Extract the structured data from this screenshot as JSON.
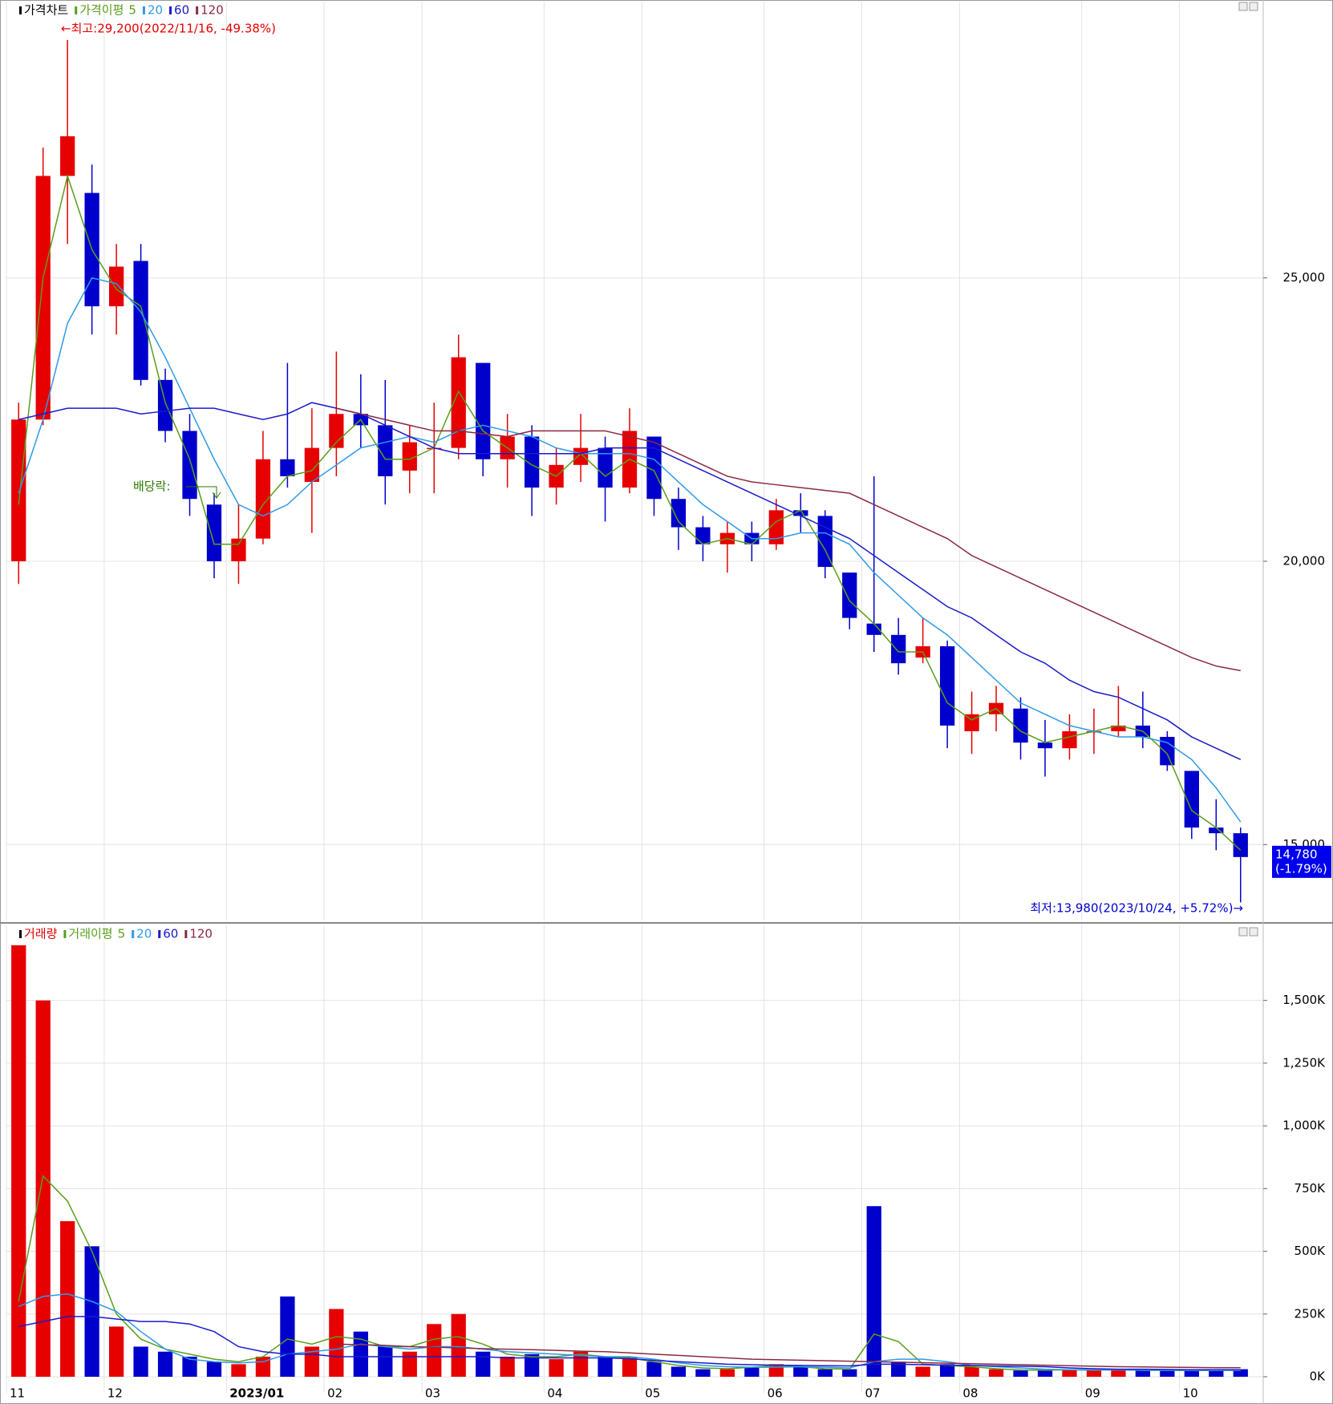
{
  "chart_data": [
    {
      "type": "candlestick",
      "title": "가격차트",
      "legend_title": "가격이평",
      "up_color": "#e60000",
      "down_color": "#0000cc",
      "open": [
        20000,
        22500,
        26800,
        26500,
        24500,
        25300,
        23200,
        22300,
        21000,
        20000,
        20400,
        21800,
        21400,
        22000,
        22600,
        22400,
        21600,
        22000,
        22000,
        23500,
        21800,
        22200,
        21300,
        21700,
        22000,
        21300,
        22200,
        21100,
        20600,
        20300,
        20500,
        20300,
        20900,
        20800,
        19800,
        18900,
        18700,
        18300,
        18500,
        17000,
        17300,
        17400,
        16800,
        16700,
        17000,
        17000,
        17100,
        16900,
        16300,
        15300,
        15200
      ],
      "high": [
        22800,
        27300,
        29200,
        27000,
        25600,
        25600,
        23400,
        22600,
        21200,
        21000,
        22300,
        23500,
        22700,
        23700,
        23300,
        23200,
        22400,
        22800,
        24000,
        23500,
        22600,
        22400,
        22000,
        22600,
        22200,
        22700,
        22200,
        21300,
        20800,
        20700,
        20700,
        21100,
        21200,
        20900,
        19800,
        21500,
        19000,
        19000,
        18600,
        17700,
        17800,
        17600,
        17200,
        17300,
        17400,
        17800,
        17700,
        17000,
        16300,
        15800,
        15300
      ],
      "low": [
        19600,
        22400,
        25600,
        24000,
        24000,
        23100,
        22100,
        20800,
        19700,
        19600,
        20300,
        21300,
        20500,
        21500,
        22000,
        21000,
        21200,
        21200,
        21800,
        21500,
        21300,
        20800,
        21000,
        21400,
        20700,
        21200,
        20800,
        20200,
        20000,
        19800,
        20000,
        20200,
        20500,
        19700,
        18800,
        18400,
        18000,
        18200,
        16700,
        16600,
        17000,
        16500,
        16200,
        16500,
        16600,
        16900,
        16700,
        16300,
        15100,
        14900,
        13980
      ],
      "close": [
        22500,
        26800,
        27500,
        24500,
        25200,
        23200,
        22300,
        21100,
        20000,
        20400,
        21800,
        21500,
        22000,
        22600,
        22400,
        21500,
        22100,
        22000,
        23600,
        21800,
        22200,
        21300,
        21700,
        22000,
        21300,
        22300,
        21100,
        20600,
        20300,
        20500,
        20300,
        20900,
        20800,
        19900,
        19000,
        18700,
        18200,
        18500,
        17100,
        17300,
        17500,
        16800,
        16700,
        17000,
        17000,
        17100,
        16900,
        16400,
        15300,
        15200,
        14780
      ],
      "series": [
        {
          "name": "5",
          "color": "#5a9e1c",
          "values": [
            21000,
            25000,
            26800,
            25500,
            24800,
            24500,
            22800,
            21800,
            20300,
            20300,
            21000,
            21500,
            21600,
            22100,
            22500,
            21800,
            21800,
            22000,
            23000,
            22300,
            22000,
            21700,
            21500,
            21900,
            21500,
            21800,
            21600,
            20700,
            20300,
            20400,
            20300,
            20700,
            20900,
            20200,
            19300,
            18900,
            18400,
            18400,
            17500,
            17200,
            17400,
            17000,
            16800,
            16900,
            17000,
            17100,
            17000,
            16600,
            15600,
            15300,
            14900
          ]
        },
        {
          "name": "20",
          "color": "#2e9ae6",
          "values": [
            21200,
            22500,
            24200,
            25000,
            24900,
            24400,
            23600,
            22700,
            21800,
            21000,
            20800,
            21000,
            21400,
            21700,
            22000,
            22100,
            22200,
            22100,
            22300,
            22400,
            22300,
            22200,
            22000,
            21900,
            21900,
            21900,
            21800,
            21400,
            21000,
            20700,
            20400,
            20400,
            20500,
            20500,
            20300,
            19800,
            19400,
            19000,
            18700,
            18300,
            17900,
            17500,
            17300,
            17100,
            17000,
            16900,
            16900,
            16800,
            16500,
            16000,
            15400
          ]
        },
        {
          "name": "60",
          "color": "#1a1acc",
          "values": [
            22500,
            22600,
            22700,
            22700,
            22700,
            22600,
            22650,
            22700,
            22700,
            22600,
            22500,
            22600,
            22800,
            22700,
            22600,
            22400,
            22200,
            22000,
            21900,
            21900,
            21900,
            21900,
            21900,
            21900,
            22000,
            22000,
            22000,
            21800,
            21600,
            21400,
            21200,
            21000,
            20800,
            20600,
            20400,
            20100,
            19800,
            19500,
            19200,
            19000,
            18700,
            18400,
            18200,
            17900,
            17700,
            17600,
            17400,
            17200,
            16900,
            16700,
            16500
          ]
        },
        {
          "name": "120",
          "color": "#8b2942",
          "values": [
            null,
            null,
            null,
            null,
            null,
            null,
            null,
            null,
            null,
            null,
            null,
            null,
            null,
            22700,
            22600,
            22500,
            22400,
            22300,
            22300,
            22250,
            22200,
            22300,
            22300,
            22300,
            22300,
            22200,
            22100,
            21900,
            21700,
            21500,
            21400,
            21350,
            21300,
            21250,
            21200,
            21000,
            20800,
            20600,
            20400,
            20100,
            19900,
            19700,
            19500,
            19300,
            19100,
            18900,
            18700,
            18500,
            18300,
            18150,
            18070
          ]
        }
      ],
      "ylim": [
        13660,
        29820
      ],
      "yticks": [
        {
          "value": 25000,
          "label": "25,000"
        },
        {
          "value": 20000,
          "label": "20,000"
        },
        {
          "value": 15000,
          "label": "15,000"
        }
      ],
      "grid": true,
      "high_annotation": "←최고:29,200(2022/11/16, -49.38%)",
      "low_annotation": "최저:13,980(2023/10/24, +5.72%)→",
      "dividend_annotation": "배당락:",
      "last_label": "14,780",
      "last_change": "(-1.79%)"
    },
    {
      "type": "bar",
      "title": "거래량",
      "legend_title": "거래이평",
      "categories": [
        "11",
        null,
        null,
        null,
        "12",
        null,
        null,
        null,
        null,
        "2023/01",
        null,
        null,
        null,
        "02",
        null,
        null,
        null,
        "03",
        null,
        null,
        null,
        null,
        "04",
        null,
        null,
        null,
        "05",
        null,
        null,
        null,
        null,
        "06",
        null,
        null,
        null,
        "07",
        null,
        null,
        null,
        "08",
        null,
        null,
        null,
        null,
        "09",
        null,
        null,
        null,
        "10",
        null,
        null
      ],
      "values": [
        1720000,
        1500000,
        620000,
        520000,
        200000,
        120000,
        100000,
        80000,
        60000,
        50000,
        80000,
        320000,
        120000,
        270000,
        180000,
        120000,
        100000,
        210000,
        250000,
        100000,
        80000,
        90000,
        70000,
        100000,
        80000,
        80000,
        60000,
        40000,
        30000,
        30000,
        40000,
        50000,
        40000,
        30000,
        30000,
        680000,
        60000,
        40000,
        50000,
        40000,
        30000,
        25000,
        25000,
        30000,
        25000,
        30000,
        25000,
        25000,
        25000,
        25000,
        30000
      ],
      "series": [
        {
          "name": "5",
          "color": "#5a9e1c",
          "values": [
            300000,
            800000,
            700000,
            500000,
            250000,
            150000,
            110000,
            90000,
            70000,
            60000,
            80000,
            150000,
            130000,
            160000,
            150000,
            120000,
            120000,
            150000,
            160000,
            130000,
            90000,
            80000,
            80000,
            90000,
            80000,
            75000,
            60000,
            45000,
            35000,
            32000,
            38000,
            45000,
            40000,
            32000,
            30000,
            170000,
            140000,
            50000,
            45000,
            40000,
            32000,
            27000,
            26000,
            28000,
            26000,
            28000,
            26000,
            25000,
            25000,
            25000,
            27000
          ]
        },
        {
          "name": "20",
          "color": "#2e9ae6",
          "values": [
            280000,
            320000,
            330000,
            300000,
            260000,
            180000,
            110000,
            70000,
            60000,
            55000,
            60000,
            90000,
            100000,
            110000,
            130000,
            120000,
            110000,
            120000,
            120000,
            110000,
            100000,
            95000,
            90000,
            85000,
            80000,
            80000,
            70000,
            55000,
            45000,
            40000,
            38000,
            38000,
            40000,
            38000,
            35000,
            60000,
            70000,
            70000,
            60000,
            45000,
            40000,
            35000,
            30000,
            28000,
            27000,
            27000,
            26000,
            26000,
            25000,
            25000,
            25000
          ]
        },
        {
          "name": "60",
          "color": "#1a1acc",
          "values": [
            200000,
            220000,
            240000,
            240000,
            230000,
            220000,
            220000,
            210000,
            180000,
            120000,
            100000,
            90000,
            90000,
            80000,
            80000,
            80000,
            80000,
            80000,
            80000,
            80000,
            75000,
            75000,
            75000,
            75000,
            75000,
            72000,
            65000,
            60000,
            55000,
            50000,
            48000,
            46000,
            45000,
            44000,
            43000,
            50000,
            50000,
            48000,
            46000,
            45000,
            43000,
            42000,
            40000,
            35000,
            32000,
            30000,
            30000,
            29000,
            28000,
            28000,
            28000
          ]
        },
        {
          "name": "120",
          "color": "#8b2942",
          "values": [
            null,
            null,
            null,
            null,
            null,
            null,
            null,
            null,
            null,
            null,
            null,
            null,
            null,
            130000,
            128000,
            125000,
            120000,
            118000,
            115000,
            112000,
            110000,
            108000,
            105000,
            102000,
            100000,
            95000,
            90000,
            85000,
            80000,
            75000,
            70000,
            68000,
            66000,
            64000,
            62000,
            60000,
            58000,
            56000,
            54000,
            52000,
            50000,
            48000,
            46000,
            44000,
            42000,
            40000,
            39000,
            38000,
            37000,
            36000,
            36000
          ]
        }
      ],
      "ylim": [
        0,
        1793000
      ],
      "yticks": [
        {
          "value": 0,
          "label": "0K"
        },
        {
          "value": 250000,
          "label": "250K"
        },
        {
          "value": 500000,
          "label": "500K"
        },
        {
          "value": 750000,
          "label": "750K"
        },
        {
          "value": 1000000,
          "label": "1,000K"
        },
        {
          "value": 1250000,
          "label": "1,250K"
        },
        {
          "value": 1500000,
          "label": "1,500K"
        }
      ],
      "grid": true
    }
  ]
}
